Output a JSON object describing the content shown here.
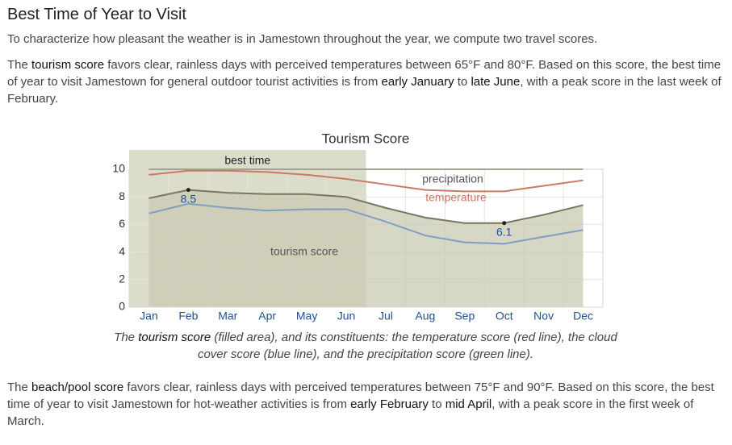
{
  "heading": "Best Time of Year to Visit",
  "intro": "To characterize how pleasant the weather is in Jamestown throughout the year, we compute two travel scores.",
  "tourism_paragraph": [
    {
      "text": "The "
    },
    {
      "text": "tourism score",
      "emphasis": true
    },
    {
      "text": " favors clear, rainless days with perceived temperatures between 65°F and 80°F. Based on this score, the best time of year to visit Jamestown for general outdoor tourist activities is from "
    },
    {
      "text": "early January",
      "emphasis": true
    },
    {
      "text": " to "
    },
    {
      "text": "late June",
      "emphasis": true
    },
    {
      "text": ", with a peak score in the last week of February."
    }
  ],
  "beach_paragraph": [
    {
      "text": "The "
    },
    {
      "text": "beach/pool score",
      "emphasis": true
    },
    {
      "text": " favors clear, rainless days with perceived temperatures between 75°F and 90°F. Based on this score, the best time of year to visit Jamestown for hot-weather activities is from "
    },
    {
      "text": "early February",
      "emphasis": true
    },
    {
      "text": " to "
    },
    {
      "text": "mid April",
      "emphasis": true
    },
    {
      "text": ", with a peak score in the first week of March."
    }
  ],
  "chart_data": {
    "type": "line",
    "title": "Tourism Score",
    "categories": [
      "Jan",
      "Feb",
      "Mar",
      "Apr",
      "May",
      "Jun",
      "Jul",
      "Aug",
      "Sep",
      "Oct",
      "Nov",
      "Dec"
    ],
    "series": [
      {
        "name": "tourism score",
        "color": "#77775f",
        "fill": "#c9c9b3",
        "values": [
          7.9,
          8.5,
          8.3,
          8.2,
          8.2,
          8.0,
          7.2,
          6.5,
          6.1,
          6.1,
          6.7,
          7.4
        ]
      },
      {
        "color": "#7f9fc2",
        "values": [
          6.8,
          7.5,
          7.2,
          7.0,
          7.1,
          7.1,
          6.2,
          5.2,
          4.7,
          4.6,
          5.1,
          5.6
        ]
      },
      {
        "name": "temperature",
        "color": "#c97a63",
        "values": [
          9.6,
          9.9,
          9.9,
          9.8,
          9.6,
          9.3,
          8.9,
          8.5,
          8.4,
          8.4,
          8.8,
          9.2
        ]
      },
      {
        "name": "precipitation",
        "color": "#6b6e5c",
        "values": [
          10,
          10,
          10,
          10,
          10,
          10,
          10,
          10,
          10,
          10,
          10,
          10
        ]
      }
    ],
    "highlight": {
      "label": "best time",
      "from": "Jan",
      "to": "Jun"
    },
    "annotations": [
      {
        "category": "Feb",
        "value": 8.5
      },
      {
        "category": "Oct",
        "value": 6.1
      }
    ],
    "ylim": [
      0,
      10
    ],
    "yticks": [
      0,
      2,
      4,
      6,
      8,
      10
    ],
    "grid": true,
    "caption": [
      {
        "text": "The "
      },
      {
        "text": "tourism score",
        "emphasis": true
      },
      {
        "text": " (filled area), and its constituents: the temperature score (red line), the cloud cover score (blue line), and the precipitation score (green line)."
      }
    ]
  }
}
